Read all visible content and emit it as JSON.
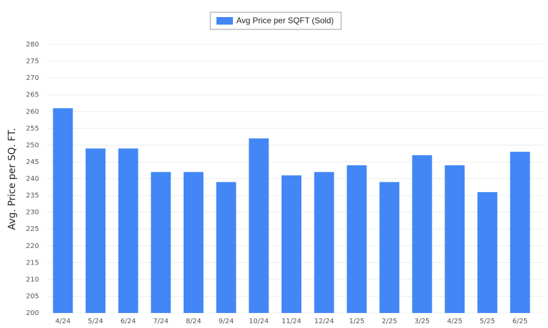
{
  "chart_data": {
    "type": "bar",
    "y_label": "Avg. Price per SQ. FT.",
    "categories": [
      "4/24",
      "5/24",
      "6/24",
      "7/24",
      "8/24",
      "9/24",
      "10/24",
      "11/24",
      "12/24",
      "1/25",
      "2/25",
      "3/25",
      "4/25",
      "5/25",
      "6/25"
    ],
    "series": [
      {
        "name": "Avg Price per SQFT (Sold)",
        "color": "#4287f5",
        "values": [
          261,
          249,
          249,
          242,
          242,
          239,
          252,
          241,
          242,
          244,
          239,
          247,
          244,
          236,
          248
        ]
      }
    ],
    "ylim": [
      200,
      280
    ],
    "yticks": [
      200,
      205,
      210,
      215,
      220,
      225,
      230,
      235,
      240,
      245,
      250,
      255,
      260,
      265,
      270,
      275,
      280
    ],
    "grid": true
  }
}
